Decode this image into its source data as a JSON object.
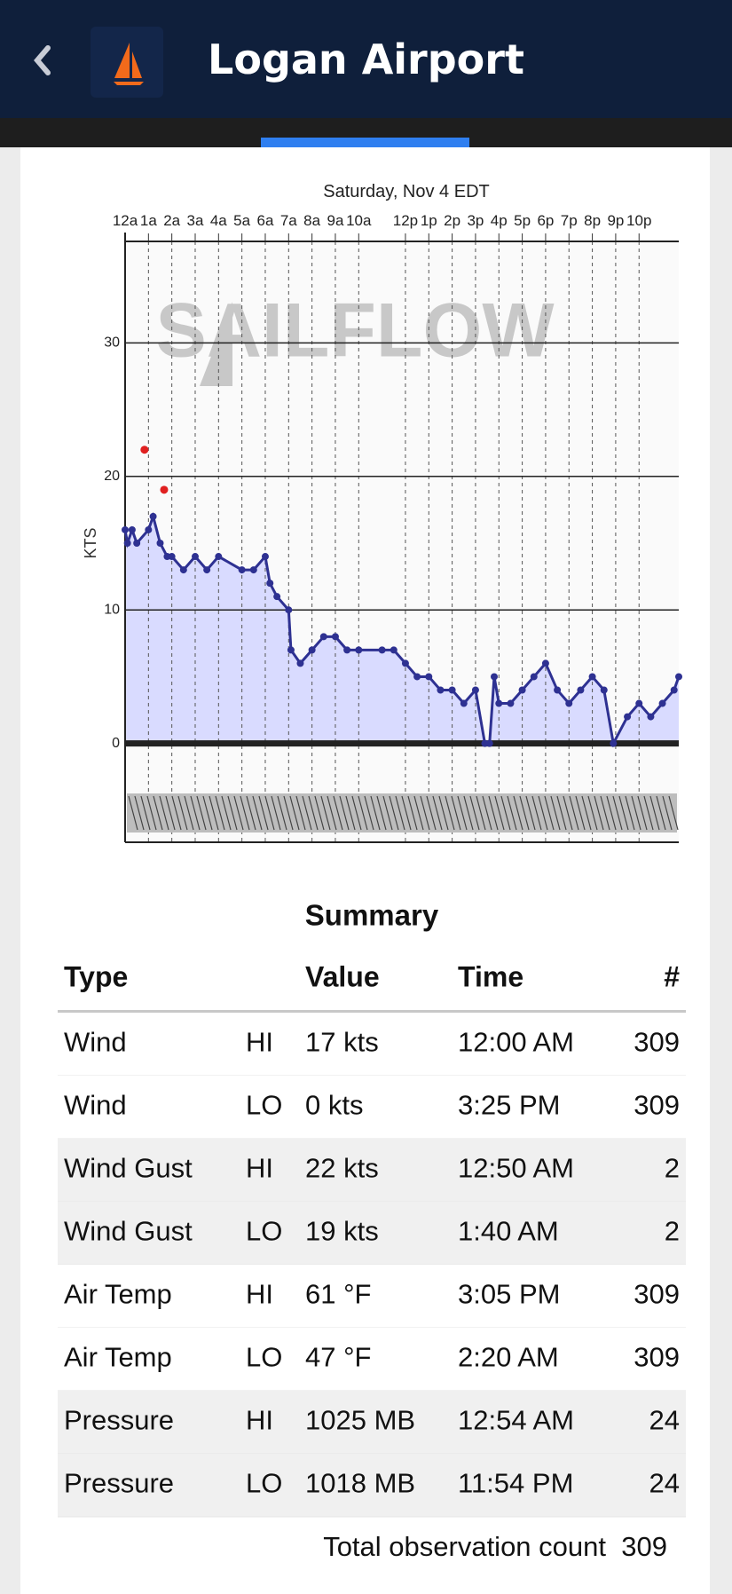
{
  "header": {
    "title": "Logan Airport"
  },
  "chart_data": {
    "type": "line",
    "title": "Saturday, Nov 4 EDT",
    "y_label": "KTS",
    "watermark": "SAILFLOW",
    "xlim": [
      0,
      23.7
    ],
    "xticks": [
      {
        "value": 0,
        "label": "12a"
      },
      {
        "value": 1,
        "label": "1a"
      },
      {
        "value": 2,
        "label": "2a"
      },
      {
        "value": 3,
        "label": "3a"
      },
      {
        "value": 4,
        "label": "4a"
      },
      {
        "value": 5,
        "label": "5a"
      },
      {
        "value": 6,
        "label": "6a"
      },
      {
        "value": 7,
        "label": "7a"
      },
      {
        "value": 8,
        "label": "8a"
      },
      {
        "value": 9,
        "label": "9a"
      },
      {
        "value": 10,
        "label": "10a"
      },
      {
        "value": 12,
        "label": "12p"
      },
      {
        "value": 13,
        "label": "1p"
      },
      {
        "value": 14,
        "label": "2p"
      },
      {
        "value": 15,
        "label": "3p"
      },
      {
        "value": 16,
        "label": "4p"
      },
      {
        "value": 17,
        "label": "5p"
      },
      {
        "value": 18,
        "label": "6p"
      },
      {
        "value": 19,
        "label": "7p"
      },
      {
        "value": 20,
        "label": "8p"
      },
      {
        "value": 21,
        "label": "9p"
      },
      {
        "value": 22,
        "label": "10p"
      }
    ],
    "ylim": [
      -7.4,
      37.6
    ],
    "yticks": [
      0,
      10,
      20,
      30
    ],
    "grid": true,
    "series": [
      {
        "color": "#2e3192",
        "fill": "#d9dbff",
        "x": [
          0,
          0.1,
          0.3,
          0.5,
          1,
          1.2,
          1.5,
          1.8,
          2,
          2.5,
          3,
          3.5,
          4,
          5,
          5.5,
          6,
          6.2,
          6.5,
          7,
          7.1,
          7.5,
          8,
          8.5,
          9,
          9.5,
          10,
          11,
          11.5,
          12,
          12.5,
          13,
          13.5,
          14,
          14.5,
          15,
          15.4,
          15.6,
          15.8,
          16,
          16.5,
          17,
          17.5,
          18,
          18.5,
          19,
          19.5,
          20,
          20.5,
          20.9,
          21.5,
          22,
          22.5,
          23,
          23.5,
          23.7
        ],
        "values": [
          16,
          15,
          16,
          15,
          16,
          17,
          15,
          14,
          14,
          13,
          14,
          13,
          14,
          13,
          13,
          14,
          12,
          11,
          10,
          7,
          6,
          7,
          8,
          8,
          7,
          7,
          7,
          7,
          6,
          5,
          5,
          4,
          4,
          3,
          4,
          0,
          0,
          5,
          3,
          3,
          4,
          5,
          6,
          4,
          3,
          4,
          5,
          4,
          0,
          2,
          3,
          2,
          3,
          4,
          5
        ]
      },
      {
        "color": "#e02020",
        "x": [
          0.83,
          1.67
        ],
        "values": [
          22,
          19
        ]
      }
    ]
  },
  "summary": {
    "title": "Summary",
    "columns": [
      "Type",
      "Value",
      "Time",
      "#"
    ],
    "rows": [
      [
        "Wind",
        "HI",
        "17 kts",
        "12:00 AM",
        "309"
      ],
      [
        "Wind",
        "LO",
        "0 kts",
        "3:25 PM",
        "309"
      ],
      [
        "Wind Gust",
        "HI",
        "22 kts",
        "12:50 AM",
        "2"
      ],
      [
        "Wind Gust",
        "LO",
        "19 kts",
        "1:40 AM",
        "2"
      ],
      [
        "Air Temp",
        "HI",
        "61 °F",
        "3:05 PM",
        "309"
      ],
      [
        "Air Temp",
        "LO",
        "47 °F",
        "2:20 AM",
        "309"
      ],
      [
        "Pressure",
        "HI",
        "1025 MB",
        "12:54 AM",
        "24"
      ],
      [
        "Pressure",
        "LO",
        "1018 MB",
        "11:54 PM",
        "24"
      ]
    ],
    "total_label": "Total observation count",
    "total_value": "309"
  }
}
